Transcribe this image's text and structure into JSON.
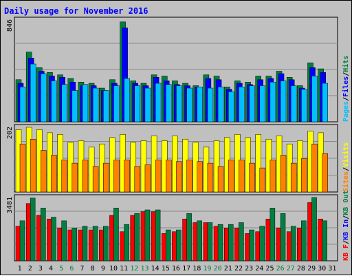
{
  "chart_data": [
    {
      "type": "bar",
      "title": "Daily usage for November 2016",
      "xlabel": "",
      "ylabel": "",
      "categories": [
        "1",
        "2",
        "3",
        "4",
        "5",
        "6",
        "7",
        "8",
        "9",
        "10",
        "11",
        "12",
        "13",
        "14",
        "15",
        "16",
        "17",
        "18",
        "19",
        "20",
        "21",
        "22",
        "23",
        "24",
        "25",
        "26",
        "27",
        "28",
        "29",
        "30",
        "31"
      ],
      "weekend_days": [
        "5",
        "6",
        "12",
        "13",
        "19",
        "20",
        "26",
        "27"
      ],
      "ylim": [
        0,
        846
      ],
      "y_tick_label": "846",
      "side_labels": [
        "Pages",
        "/",
        "Files",
        "/",
        "Hits"
      ],
      "series": [
        {
          "name": "Hits",
          "color": "#008040",
          "values": [
            350,
            580,
            450,
            410,
            390,
            360,
            330,
            320,
            280,
            350,
            830,
            340,
            320,
            390,
            380,
            340,
            320,
            300,
            390,
            380,
            290,
            340,
            330,
            380,
            380,
            420,
            370,
            300,
            490,
            440,
            null
          ]
        },
        {
          "name": "Files",
          "color": "#0000ff",
          "values": [
            320,
            530,
            420,
            380,
            370,
            330,
            300,
            300,
            260,
            320,
            780,
            320,
            300,
            370,
            340,
            310,
            300,
            290,
            360,
            350,
            270,
            320,
            310,
            350,
            360,
            400,
            350,
            280,
            450,
            410,
            null
          ]
        },
        {
          "name": "Pages",
          "color": "#00c0ff",
          "values": [
            290,
            480,
            400,
            340,
            310,
            260,
            310,
            280,
            260,
            300,
            360,
            300,
            280,
            320,
            310,
            300,
            280,
            290,
            280,
            290,
            250,
            290,
            300,
            300,
            330,
            340,
            300,
            270,
            380,
            320,
            null
          ]
        }
      ]
    },
    {
      "type": "bar",
      "categories": [
        "1",
        "2",
        "3",
        "4",
        "5",
        "6",
        "7",
        "8",
        "9",
        "10",
        "11",
        "12",
        "13",
        "14",
        "15",
        "16",
        "17",
        "18",
        "19",
        "20",
        "21",
        "22",
        "23",
        "24",
        "25",
        "26",
        "27",
        "28",
        "29",
        "30",
        "31"
      ],
      "ylim": [
        0,
        202
      ],
      "y_tick_label": "202",
      "side_labels": [
        "Sites",
        "/",
        "Visits"
      ],
      "series": [
        {
          "name": "Visits",
          "color": "#ffff00",
          "values": [
            195,
            202,
            195,
            185,
            180,
            155,
            160,
            140,
            150,
            170,
            180,
            155,
            160,
            175,
            160,
            175,
            165,
            155,
            140,
            160,
            170,
            180,
            170,
            180,
            165,
            175,
            150,
            160,
            190,
            185,
            null
          ]
        },
        {
          "name": "Sites",
          "color": "#ff8000",
          "values": [
            150,
            165,
            130,
            115,
            100,
            90,
            100,
            80,
            90,
            100,
            100,
            80,
            85,
            100,
            100,
            95,
            100,
            95,
            90,
            80,
            100,
            100,
            90,
            75,
            100,
            115,
            90,
            105,
            150,
            120,
            null
          ]
        }
      ]
    },
    {
      "type": "bar",
      "categories": [
        "1",
        "2",
        "3",
        "4",
        "5",
        "6",
        "7",
        "8",
        "9",
        "10",
        "11",
        "12",
        "13",
        "14",
        "15",
        "16",
        "17",
        "18",
        "19",
        "20",
        "21",
        "22",
        "23",
        "24",
        "25",
        "26",
        "27",
        "28",
        "29",
        "30",
        "31"
      ],
      "ylim": [
        0,
        3481
      ],
      "y_tick_label": "3481",
      "side_labels": [
        "KB F",
        "/",
        "KB In",
        "/",
        "KB Out"
      ],
      "series": [
        {
          "name": "KB F",
          "color": "#ff0000",
          "values": [
            1900,
            3150,
            2500,
            2300,
            1800,
            1700,
            1700,
            1700,
            1700,
            2500,
            1600,
            2500,
            2700,
            2700,
            1500,
            1600,
            2300,
            2100,
            2100,
            1900,
            1800,
            1800,
            1500,
            1600,
            2300,
            1800,
            1600,
            1800,
            3200,
            2300,
            null
          ]
        },
        {
          "name": "KB Out",
          "color": "#008040",
          "values": [
            2200,
            3450,
            2900,
            2400,
            2200,
            1800,
            1900,
            1900,
            1900,
            2900,
            2000,
            2600,
            2800,
            2800,
            1700,
            1700,
            2600,
            2200,
            2100,
            2000,
            2000,
            2100,
            1700,
            1900,
            2900,
            2600,
            1900,
            2200,
            3481,
            2200,
            null
          ]
        }
      ]
    }
  ]
}
